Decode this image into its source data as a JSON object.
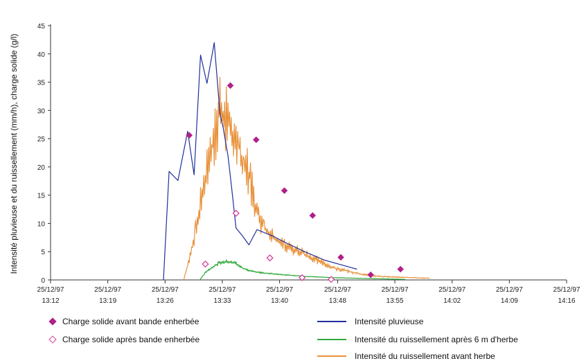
{
  "chart_data": {
    "type": "line",
    "ylabel": "Intensité pluvieuse et du ruissellement (mm/h), charge solide (g/l)",
    "ylim": [
      0,
      45
    ],
    "yticks": [
      0,
      5,
      10,
      15,
      20,
      25,
      30,
      35,
      40,
      45
    ],
    "xlim": [
      "25/12/97 13:12",
      "25/12/97 14:16"
    ],
    "xticks": [
      {
        "date": "25/12/97",
        "time": "13:12"
      },
      {
        "date": "25/12/97",
        "time": "13:19"
      },
      {
        "date": "25/12/97",
        "time": "13:26"
      },
      {
        "date": "25/12/97",
        "time": "13:33"
      },
      {
        "date": "25/12/97",
        "time": "13:40"
      },
      {
        "date": "25/12/97",
        "time": "13:48"
      },
      {
        "date": "25/12/97",
        "time": "13:55"
      },
      {
        "date": "25/12/97",
        "time": "14:02"
      },
      {
        "date": "25/12/97",
        "time": "14:09"
      },
      {
        "date": "25/12/97",
        "time": "14:16"
      }
    ],
    "xtick_minutes": [
      0,
      7.1,
      14.2,
      21.3,
      28.4,
      35.6,
      42.7,
      49.8,
      56.9,
      64
    ],
    "grid": false,
    "legend": "bottom",
    "series": [
      {
        "name": "Intensité pluvieuse",
        "kind": "line",
        "color": "#1f2f9a",
        "x": [
          14.0,
          14.7,
          15.8,
          17.0,
          17.8,
          18.6,
          19.4,
          20.3,
          21.0,
          21.4,
          22.0,
          22.4,
          23.0,
          23.8,
          24.6,
          25.6,
          27.5,
          29.3,
          31.5,
          34.0,
          38.0
        ],
        "y": [
          0,
          19.2,
          17.6,
          26.3,
          18.6,
          39.8,
          34.8,
          42.0,
          29.5,
          27.0,
          22.0,
          17.0,
          9.2,
          7.8,
          6.2,
          8.9,
          7.8,
          6.5,
          5.0,
          3.5,
          1.9
        ]
      },
      {
        "name": "Intensité du ruissellement avant herbe",
        "kind": "line",
        "color": "#e8913a",
        "noisy": true,
        "x": [
          16.5,
          17.3,
          18.0,
          18.8,
          19.6,
          20.4,
          21.0,
          21.8,
          22.6,
          23.3,
          24.0,
          24.8,
          25.6,
          26.5,
          27.5,
          29.0,
          31.0,
          33.0,
          35.0,
          37.0,
          39.0,
          41.0,
          43.0,
          45.0,
          47.0
        ],
        "y": [
          0,
          4.0,
          9.0,
          15.0,
          21.0,
          26.0,
          30.0,
          29.0,
          25.0,
          23.5,
          21.0,
          17.5,
          12.0,
          9.0,
          7.5,
          6.0,
          5.0,
          3.5,
          2.2,
          1.5,
          0.9,
          0.6,
          0.5,
          0.4,
          0.3
        ]
      },
      {
        "name": "Intensité du ruissellement après 6 m d'herbe",
        "kind": "line",
        "color": "#2eaa3c",
        "noisy": true,
        "x": [
          18.5,
          19.2,
          20.0,
          21.0,
          22.0,
          23.0,
          23.8,
          24.8,
          26.0,
          28.0,
          30.0,
          32.0,
          35.0,
          38.0,
          41.0,
          44.0
        ],
        "y": [
          0,
          1.3,
          2.2,
          3.1,
          3.2,
          2.9,
          2.1,
          1.6,
          1.3,
          1.0,
          0.8,
          0.6,
          0.4,
          0.3,
          0.2,
          0.1
        ]
      },
      {
        "name": "Charge solide avant bande enherbée",
        "kind": "scatter",
        "marker": "diamond-filled",
        "color": "#b0208a",
        "x": [
          17.2,
          22.3,
          25.5,
          29.0,
          32.5,
          36.0,
          39.7,
          43.4
        ],
        "y": [
          25.6,
          34.4,
          24.8,
          15.8,
          11.4,
          4.0,
          0.9,
          1.9
        ]
      },
      {
        "name": "Charge solide après bande enherbée",
        "kind": "scatter",
        "marker": "diamond-open",
        "color": "#d6409f",
        "x": [
          19.2,
          23.0,
          27.2,
          31.2,
          34.8
        ],
        "y": [
          2.8,
          11.8,
          3.9,
          0.4,
          0.1
        ]
      }
    ]
  },
  "legend_items": [
    {
      "label": "Charge solide avant bande enherbée"
    },
    {
      "label": "Charge solide après bande enherbée"
    },
    {
      "label": "Intensité pluvieuse"
    },
    {
      "label": "Intensité du ruissellement après 6 m d'herbe"
    },
    {
      "label": "Intensité du ruissellement avant herbe"
    }
  ]
}
